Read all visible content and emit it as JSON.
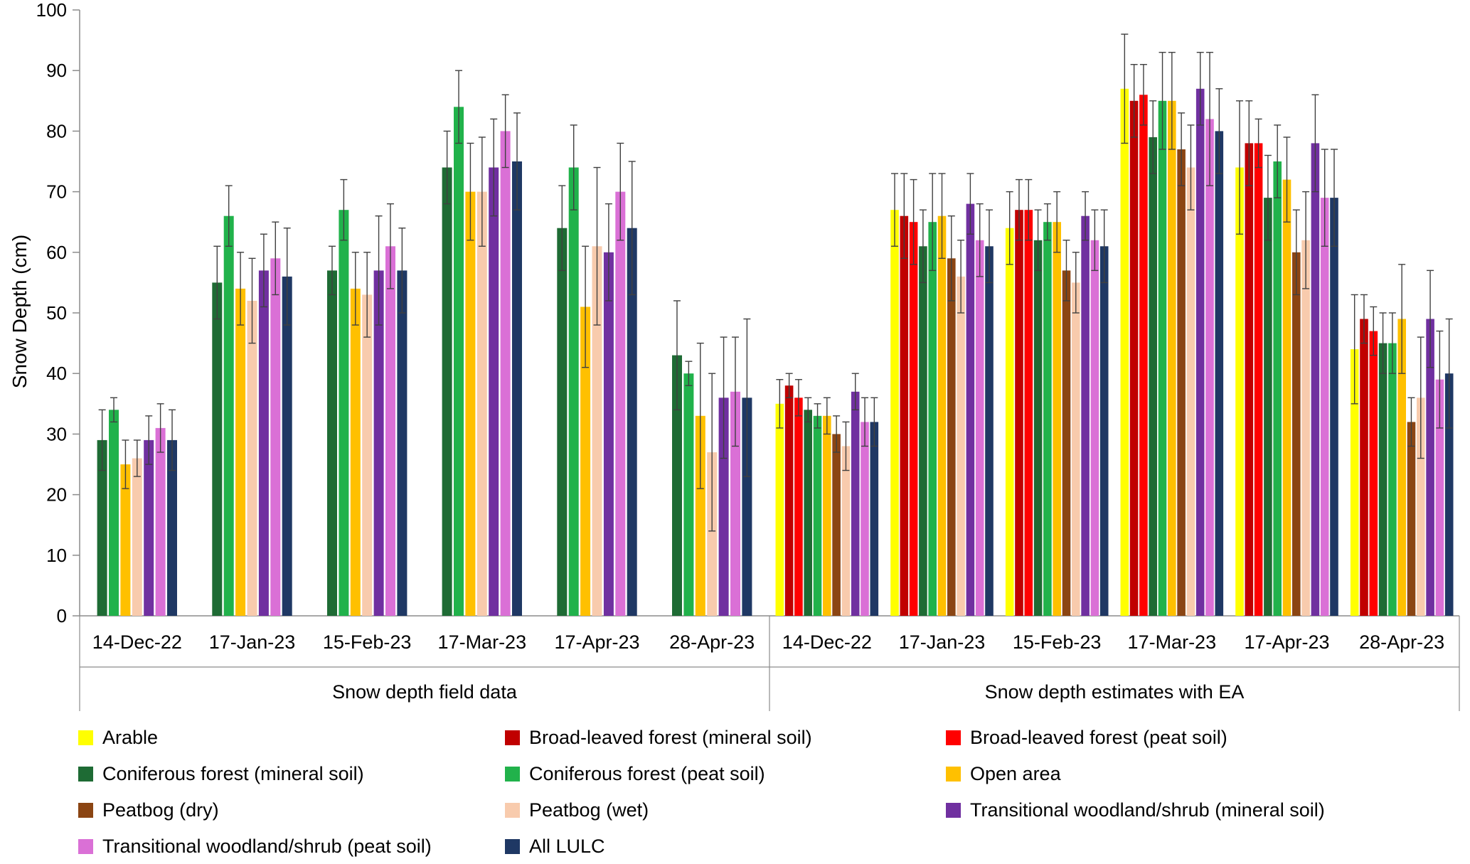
{
  "chart_data": {
    "type": "bar",
    "title": "",
    "ylabel": "Snow Depth (cm)",
    "ylim": [
      0,
      100
    ],
    "ytick_step": 10,
    "grid": false,
    "legend_position": "bottom",
    "axis_color": "#8C8C8C",
    "error_bar_color": "#404040",
    "series": [
      {
        "key": "arable",
        "name": "Arable",
        "color": "#FFFF00"
      },
      {
        "key": "broadleaved_mineral",
        "name": "Broad-leaved forest (mineral soil)",
        "color": "#C00000"
      },
      {
        "key": "broadleaved_peat",
        "name": "Broad-leaved forest (peat soil)",
        "color": "#FF0000"
      },
      {
        "key": "coniferous_mineral",
        "name": "Coniferous forest (mineral soil)",
        "color": "#1E6B34"
      },
      {
        "key": "coniferous_peat",
        "name": "Coniferous forest (peat soil)",
        "color": "#21B24B"
      },
      {
        "key": "open_area",
        "name": "Open area",
        "color": "#FFC000"
      },
      {
        "key": "peatbog_dry",
        "name": "Peatbog (dry)",
        "color": "#8B4513"
      },
      {
        "key": "peatbog_wet",
        "name": "Peatbog (wet)",
        "color": "#F8CBAD"
      },
      {
        "key": "transitional_mineral",
        "name": "Transitional woodland/shrub (mineral soil)",
        "color": "#7030A0"
      },
      {
        "key": "transitional_peat",
        "name": "Transitional woodland/shrub (peat soil)",
        "color": "#DA70D6"
      },
      {
        "key": "all_lulc",
        "name": "All LULC",
        "color": "#1F3864"
      }
    ],
    "groups": [
      {
        "label": "Snow depth field data",
        "categories": [
          "14-Dec-22",
          "17-Jan-23",
          "15-Feb-23",
          "17-Mar-23",
          "17-Apr-23",
          "28-Apr-23"
        ],
        "series_keys": [
          "coniferous_mineral",
          "coniferous_peat",
          "open_area",
          "peatbog_wet",
          "transitional_mineral",
          "transitional_peat",
          "all_lulc"
        ],
        "values": [
          [
            29,
            34,
            25,
            26,
            29,
            31,
            29
          ],
          [
            55,
            66,
            54,
            52,
            57,
            59,
            56
          ],
          [
            57,
            67,
            54,
            53,
            57,
            61,
            57
          ],
          [
            74,
            84,
            70,
            70,
            74,
            80,
            75
          ],
          [
            64,
            74,
            51,
            61,
            60,
            70,
            64
          ],
          [
            43,
            40,
            33,
            27,
            36,
            37,
            36
          ]
        ],
        "errors": [
          [
            5,
            2,
            4,
            3,
            4,
            4,
            5
          ],
          [
            6,
            5,
            6,
            7,
            6,
            6,
            8
          ],
          [
            4,
            5,
            6,
            7,
            9,
            7,
            7
          ],
          [
            6,
            6,
            8,
            9,
            8,
            6,
            8
          ],
          [
            7,
            7,
            10,
            13,
            8,
            8,
            11
          ],
          [
            9,
            2,
            12,
            13,
            10,
            9,
            13
          ]
        ]
      },
      {
        "label": "Snow depth estimates with EA",
        "categories": [
          "14-Dec-22",
          "17-Jan-23",
          "15-Feb-23",
          "17-Mar-23",
          "17-Apr-23",
          "28-Apr-23"
        ],
        "series_keys": [
          "arable",
          "broadleaved_mineral",
          "broadleaved_peat",
          "coniferous_mineral",
          "coniferous_peat",
          "open_area",
          "peatbog_dry",
          "peatbog_wet",
          "transitional_mineral",
          "transitional_peat",
          "all_lulc"
        ],
        "values": [
          [
            35,
            38,
            36,
            34,
            33,
            33,
            30,
            28,
            37,
            32,
            32
          ],
          [
            67,
            66,
            65,
            61,
            65,
            66,
            59,
            56,
            68,
            62,
            61
          ],
          [
            64,
            67,
            67,
            62,
            65,
            65,
            57,
            55,
            66,
            62,
            61
          ],
          [
            87,
            85,
            86,
            79,
            85,
            85,
            77,
            74,
            87,
            82,
            80
          ],
          [
            74,
            78,
            78,
            69,
            75,
            72,
            60,
            62,
            78,
            69,
            69
          ],
          [
            44,
            49,
            47,
            45,
            45,
            49,
            32,
            36,
            49,
            39,
            40
          ]
        ],
        "errors": [
          [
            4,
            2,
            3,
            2,
            2,
            3,
            3,
            4,
            3,
            4,
            4
          ],
          [
            6,
            7,
            7,
            6,
            8,
            7,
            7,
            6,
            5,
            6,
            6
          ],
          [
            6,
            5,
            5,
            5,
            3,
            5,
            5,
            5,
            4,
            5,
            6
          ],
          [
            9,
            6,
            5,
            6,
            8,
            8,
            6,
            7,
            6,
            11,
            7
          ],
          [
            11,
            7,
            4,
            7,
            6,
            7,
            7,
            8,
            8,
            8,
            8
          ],
          [
            9,
            4,
            4,
            5,
            5,
            9,
            4,
            10,
            8,
            8,
            9
          ]
        ]
      }
    ]
  }
}
